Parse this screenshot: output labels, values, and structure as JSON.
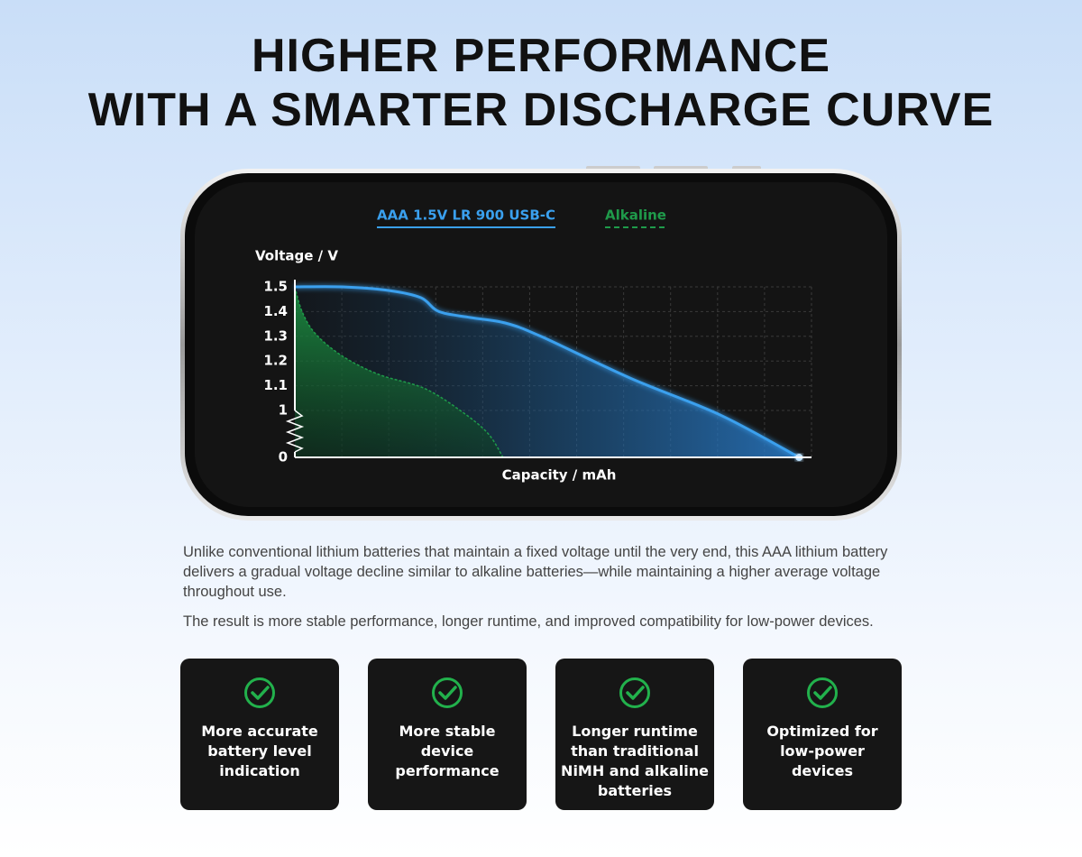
{
  "title": [
    "HIGHER PERFORMANCE",
    "WITH A SMARTER DISCHARGE CURVE"
  ],
  "chart_data": {
    "type": "line",
    "y_label": "Voltage / V",
    "x_label": "Capacity / mAh",
    "ylim": [
      0,
      1.5
    ],
    "yticks": [
      0,
      1.0,
      1.1,
      1.2,
      1.3,
      1.4,
      1.5
    ],
    "axis_break": [
      0,
      1.0
    ],
    "xlim": [
      0,
      100
    ],
    "grid": true,
    "series": [
      {
        "name": "AAA 1.5V LR 900 USB-C",
        "color": "#3aa0ee",
        "x": [
          0,
          9.2,
          18.3,
          24.4,
          27.9,
          34,
          40.7,
          47.6,
          65,
          82.4,
          97.6
        ],
        "values": [
          1.5,
          1.5,
          1.485,
          1.456,
          1.4,
          1.376,
          1.354,
          1.3,
          1.13,
          0.9,
          0
        ]
      },
      {
        "name": "Alkaline",
        "color": "#1f9a4a",
        "x": [
          0,
          1.4,
          4,
          9.2,
          16.2,
          25,
          32,
          37.3,
          40.3
        ],
        "values": [
          1.5,
          1.4,
          1.31,
          1.22,
          1.146,
          1.09,
          1.0,
          0.52,
          0
        ]
      }
    ]
  },
  "paragraphs": [
    "Unlike conventional lithium batteries that maintain a fixed voltage until the very end, this AAA lithium battery delivers a gradual voltage decline similar to alkaline batteries—while maintaining a higher average voltage throughout use.",
    "The result is more stable performance, longer runtime, and improved compatibility for low-power devices."
  ],
  "features": [
    {
      "lines": [
        "More accurate",
        "battery level",
        "indication"
      ]
    },
    {
      "lines": [
        "More stable",
        "device",
        "performance"
      ]
    },
    {
      "lines": [
        "Longer runtime",
        "than traditional",
        "NiMH and alkaline",
        "batteries"
      ]
    },
    {
      "lines": [
        "Optimized for",
        "low-power",
        "devices"
      ]
    }
  ]
}
